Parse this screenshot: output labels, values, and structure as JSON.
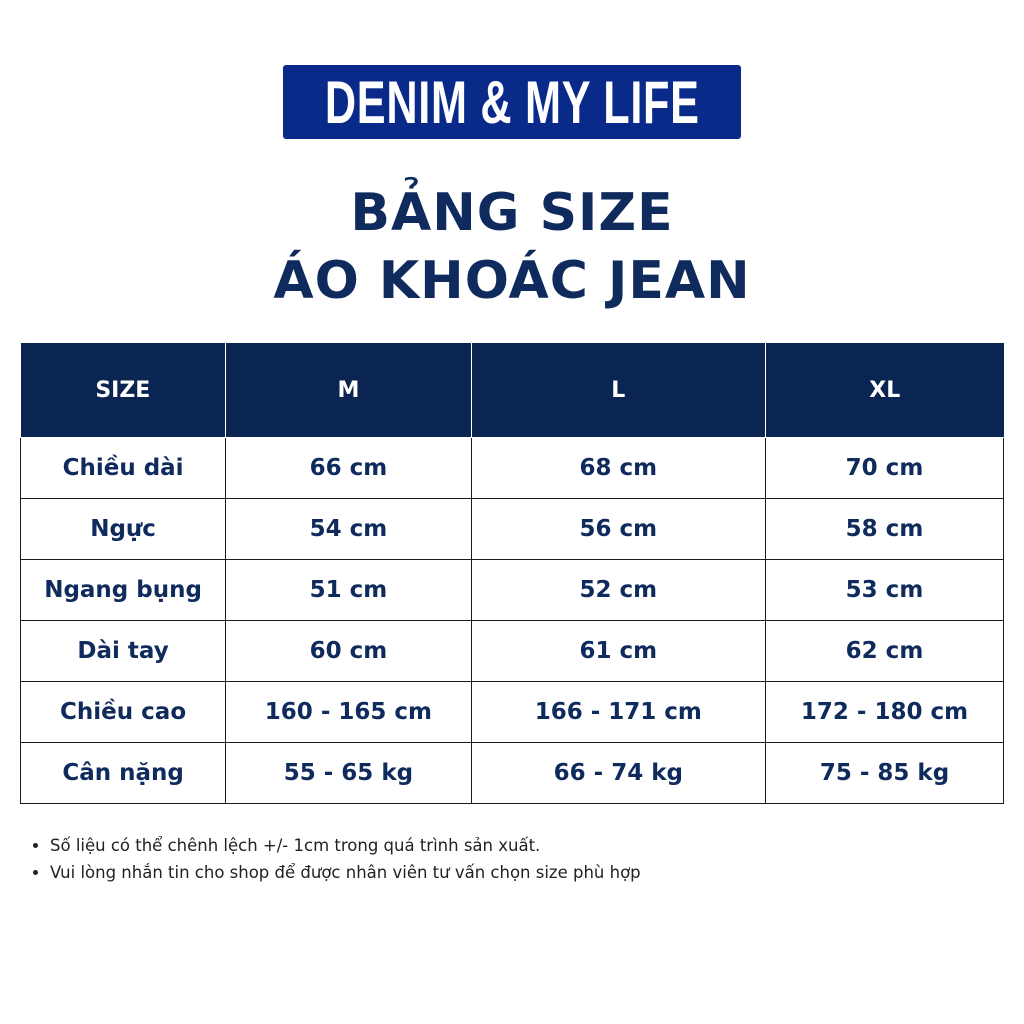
{
  "brand": {
    "logo_text": "DENIM & MY LIFE",
    "color": "#0a2a8a"
  },
  "title": {
    "line1": "BẢNG SIZE",
    "line2": "ÁO KHOÁC JEAN"
  },
  "table": {
    "headers": [
      "SIZE",
      "M",
      "L",
      "XL"
    ],
    "rows": [
      [
        "Chiều dài",
        "66 cm",
        "68 cm",
        "70 cm"
      ],
      [
        "Ngực",
        "54 cm",
        "56 cm",
        "58 cm"
      ],
      [
        "Ngang bụng",
        "51 cm",
        "52 cm",
        "53 cm"
      ],
      [
        "Dài tay",
        "60 cm",
        "61 cm",
        "62 cm"
      ],
      [
        "Chiều cao",
        "160 - 165 cm",
        "166 - 171 cm",
        "172 - 180 cm"
      ],
      [
        "Cân nặng",
        "55 - 65 kg",
        "66 - 74 kg",
        "75 - 85 kg"
      ]
    ],
    "header_color": "#0b2552"
  },
  "notes": [
    "Số liệu có thể chênh lệch +/- 1cm trong quá trình sản xuất.",
    "Vui lòng nhắn tin cho shop để được nhân viên tư vấn chọn size phù hợp"
  ]
}
